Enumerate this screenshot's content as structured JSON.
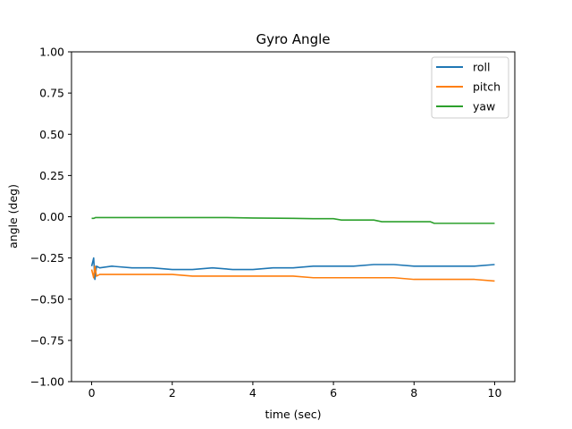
{
  "chart_data": {
    "type": "line",
    "title": "Gyro Angle",
    "xlabel": "time (sec)",
    "ylabel": "angle (deg)",
    "xlim": [
      -0.5,
      10.5
    ],
    "ylim": [
      -1.0,
      1.0
    ],
    "xticks": [
      0,
      2,
      4,
      6,
      8,
      10
    ],
    "xtick_labels": [
      "0",
      "2",
      "4",
      "6",
      "8",
      "10"
    ],
    "yticks": [
      -1.0,
      -0.75,
      -0.5,
      -0.25,
      0.0,
      0.25,
      0.5,
      0.75,
      1.0
    ],
    "ytick_labels": [
      "−1.00",
      "−0.75",
      "−0.50",
      "−0.25",
      "0.00",
      "0.25",
      "0.50",
      "0.75",
      "1.00"
    ],
    "grid": false,
    "legend_position": "top-right",
    "series": [
      {
        "name": "roll",
        "color": "#1f77b4",
        "x": [
          0.0,
          0.05,
          0.08,
          0.12,
          0.2,
          0.5,
          1.0,
          1.5,
          2.0,
          2.5,
          3.0,
          3.5,
          4.0,
          4.5,
          5.0,
          5.5,
          6.0,
          6.5,
          7.0,
          7.5,
          8.0,
          8.5,
          9.0,
          9.5,
          10.0
        ],
        "y": [
          -0.3,
          -0.25,
          -0.38,
          -0.3,
          -0.31,
          -0.3,
          -0.31,
          -0.31,
          -0.32,
          -0.32,
          -0.31,
          -0.32,
          -0.32,
          -0.31,
          -0.31,
          -0.3,
          -0.3,
          -0.3,
          -0.29,
          -0.29,
          -0.3,
          -0.3,
          -0.3,
          -0.3,
          -0.29
        ]
      },
      {
        "name": "pitch",
        "color": "#ff7f0e",
        "x": [
          0.0,
          0.05,
          0.08,
          0.12,
          0.2,
          0.5,
          1.0,
          1.5,
          2.0,
          2.5,
          3.0,
          3.5,
          4.0,
          4.5,
          5.0,
          5.5,
          6.0,
          6.5,
          7.0,
          7.5,
          8.0,
          8.5,
          9.0,
          9.5,
          10.0
        ],
        "y": [
          -0.32,
          -0.37,
          -0.3,
          -0.36,
          -0.35,
          -0.35,
          -0.35,
          -0.35,
          -0.35,
          -0.36,
          -0.36,
          -0.36,
          -0.36,
          -0.36,
          -0.36,
          -0.37,
          -0.37,
          -0.37,
          -0.37,
          -0.37,
          -0.38,
          -0.38,
          -0.38,
          -0.38,
          -0.39
        ]
      },
      {
        "name": "yaw",
        "color": "#2ca02c",
        "x": [
          0.0,
          0.05,
          0.1,
          0.3,
          1.0,
          2.0,
          3.0,
          3.3,
          4.0,
          5.0,
          5.5,
          6.0,
          6.2,
          7.0,
          7.2,
          8.0,
          8.4,
          8.5,
          9.0,
          9.5,
          10.0
        ],
        "y": [
          -0.01,
          -0.01,
          -0.005,
          -0.005,
          -0.005,
          -0.005,
          -0.005,
          -0.005,
          -0.008,
          -0.01,
          -0.012,
          -0.012,
          -0.02,
          -0.02,
          -0.03,
          -0.03,
          -0.03,
          -0.04,
          -0.04,
          -0.04,
          -0.04
        ]
      }
    ]
  }
}
